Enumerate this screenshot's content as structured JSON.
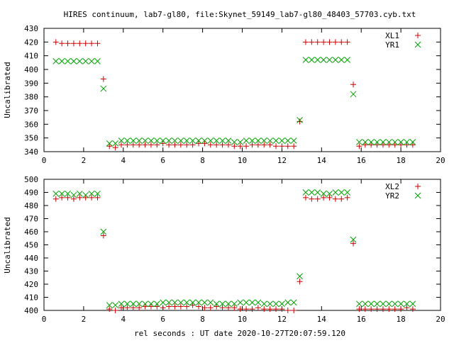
{
  "title": "HIRES continuum, lab7-gl80, file:Skynet_59149_lab7-gl80_48403_57703.cyb.txt",
  "xlabel": "rel seconds : UT date 2020-10-27T20:07:59.120",
  "colors": {
    "red": "#cc0000",
    "green": "#00a000",
    "axis": "#000000"
  },
  "chart_data": [
    {
      "type": "scatter",
      "xlim": [
        0,
        20
      ],
      "ylim": [
        340,
        430
      ],
      "xticks": [
        0,
        2,
        4,
        6,
        8,
        10,
        12,
        14,
        16,
        18,
        20
      ],
      "yticks": [
        340,
        350,
        360,
        370,
        380,
        390,
        400,
        410,
        420,
        430
      ],
      "ylabel": "Uncalibrated",
      "legend_position": "top-right",
      "series": [
        {
          "name": "XL1",
          "marker": "plus",
          "color": "#cc0000",
          "x": [
            0.6,
            0.9,
            1.2,
            1.5,
            1.8,
            2.1,
            2.4,
            2.7,
            3.0,
            3.3,
            3.6,
            3.9,
            4.2,
            4.5,
            4.8,
            5.1,
            5.4,
            5.7,
            6.0,
            6.3,
            6.6,
            6.9,
            7.2,
            7.5,
            7.8,
            8.1,
            8.4,
            8.7,
            9.0,
            9.3,
            9.6,
            9.9,
            10.2,
            10.5,
            10.8,
            11.1,
            11.4,
            11.7,
            12.0,
            12.3,
            12.6,
            12.9,
            13.2,
            13.5,
            13.8,
            14.1,
            14.4,
            14.7,
            15.0,
            15.3,
            15.6,
            15.9,
            16.2,
            16.5,
            16.8,
            17.1,
            17.4,
            17.7,
            18.0,
            18.3,
            18.6
          ],
          "y": [
            420,
            419,
            419,
            419,
            419,
            419,
            419,
            419,
            393,
            344,
            343,
            345,
            345,
            345,
            345,
            345,
            345,
            345,
            346,
            345,
            345,
            345,
            345,
            345,
            346,
            346,
            345,
            345,
            345,
            345,
            344,
            344,
            344,
            345,
            345,
            345,
            345,
            344,
            344,
            344,
            344,
            362,
            420,
            420,
            420,
            420,
            420,
            420,
            420,
            420,
            389,
            344,
            345,
            345,
            345,
            345,
            345,
            345,
            345,
            345,
            345
          ]
        },
        {
          "name": "YR1",
          "marker": "cross",
          "color": "#00a000",
          "x": [
            0.6,
            0.9,
            1.2,
            1.5,
            1.8,
            2.1,
            2.4,
            2.7,
            3.0,
            3.3,
            3.6,
            3.9,
            4.2,
            4.5,
            4.8,
            5.1,
            5.4,
            5.7,
            6.0,
            6.3,
            6.6,
            6.9,
            7.2,
            7.5,
            7.8,
            8.1,
            8.4,
            8.7,
            9.0,
            9.3,
            9.6,
            9.9,
            10.2,
            10.5,
            10.8,
            11.1,
            11.4,
            11.7,
            12.0,
            12.3,
            12.6,
            12.9,
            13.2,
            13.5,
            13.8,
            14.1,
            14.4,
            14.7,
            15.0,
            15.3,
            15.6,
            15.9,
            16.2,
            16.5,
            16.8,
            17.1,
            17.4,
            17.7,
            18.0,
            18.3,
            18.6
          ],
          "y": [
            406,
            406,
            406,
            406,
            406,
            406,
            406,
            406,
            386,
            346,
            346,
            348,
            348,
            348,
            348,
            348,
            348,
            348,
            348,
            348,
            348,
            348,
            348,
            348,
            348,
            348,
            348,
            348,
            348,
            348,
            347,
            347,
            348,
            348,
            348,
            348,
            348,
            348,
            348,
            348,
            348,
            363,
            407,
            407,
            407,
            407,
            407,
            407,
            407,
            407,
            382,
            347,
            347,
            347,
            347,
            347,
            347,
            347,
            347,
            347,
            347
          ]
        }
      ]
    },
    {
      "type": "scatter",
      "xlim": [
        0,
        20
      ],
      "ylim": [
        400,
        500
      ],
      "xticks": [
        0,
        2,
        4,
        6,
        8,
        10,
        12,
        14,
        16,
        18,
        20
      ],
      "yticks": [
        400,
        410,
        420,
        430,
        440,
        450,
        460,
        470,
        480,
        490,
        500
      ],
      "ylabel": "Uncalibrated",
      "legend_position": "top-right",
      "series": [
        {
          "name": "XL2",
          "marker": "plus",
          "color": "#cc0000",
          "x": [
            0.6,
            0.9,
            1.2,
            1.5,
            1.8,
            2.1,
            2.4,
            2.7,
            3.0,
            3.3,
            3.6,
            3.9,
            4.2,
            4.5,
            4.8,
            5.1,
            5.4,
            5.7,
            6.0,
            6.3,
            6.6,
            6.9,
            7.2,
            7.5,
            7.8,
            8.1,
            8.4,
            8.7,
            9.0,
            9.3,
            9.6,
            9.9,
            10.2,
            10.5,
            10.8,
            11.1,
            11.4,
            11.7,
            12.0,
            12.3,
            12.6,
            12.9,
            13.2,
            13.5,
            13.8,
            14.1,
            14.4,
            14.7,
            15.0,
            15.3,
            15.6,
            15.9,
            16.2,
            16.5,
            16.8,
            17.1,
            17.4,
            17.7,
            18.0,
            18.3,
            18.6
          ],
          "y": [
            485,
            486,
            486,
            485,
            486,
            486,
            486,
            486,
            457,
            401,
            400,
            402,
            402,
            402,
            402,
            403,
            403,
            403,
            402,
            403,
            403,
            403,
            403,
            404,
            403,
            402,
            402,
            403,
            402,
            402,
            402,
            401,
            401,
            401,
            402,
            401,
            401,
            401,
            401,
            400,
            400,
            422,
            486,
            485,
            485,
            486,
            486,
            485,
            485,
            486,
            451,
            401,
            401,
            401,
            401,
            401,
            401,
            401,
            401,
            402,
            401
          ]
        },
        {
          "name": "YR2",
          "marker": "cross",
          "color": "#00a000",
          "x": [
            0.6,
            0.9,
            1.2,
            1.5,
            1.8,
            2.1,
            2.4,
            2.7,
            3.0,
            3.3,
            3.6,
            3.9,
            4.2,
            4.5,
            4.8,
            5.1,
            5.4,
            5.7,
            6.0,
            6.3,
            6.6,
            6.9,
            7.2,
            7.5,
            7.8,
            8.1,
            8.4,
            8.7,
            9.0,
            9.3,
            9.6,
            9.9,
            10.2,
            10.5,
            10.8,
            11.1,
            11.4,
            11.7,
            12.0,
            12.3,
            12.6,
            12.9,
            13.2,
            13.5,
            13.8,
            14.1,
            14.4,
            14.7,
            15.0,
            15.3,
            15.6,
            15.9,
            16.2,
            16.5,
            16.8,
            17.1,
            17.4,
            17.7,
            18.0,
            18.3,
            18.6
          ],
          "y": [
            489,
            489,
            489,
            488,
            489,
            488,
            489,
            489,
            460,
            404,
            404,
            405,
            405,
            405,
            405,
            405,
            405,
            405,
            406,
            406,
            406,
            406,
            406,
            406,
            406,
            406,
            406,
            405,
            405,
            405,
            405,
            406,
            406,
            406,
            406,
            405,
            405,
            405,
            405,
            406,
            406,
            426,
            490,
            490,
            490,
            489,
            489,
            490,
            490,
            490,
            454,
            405,
            405,
            405,
            405,
            405,
            405,
            405,
            405,
            405,
            405
          ]
        }
      ]
    }
  ]
}
